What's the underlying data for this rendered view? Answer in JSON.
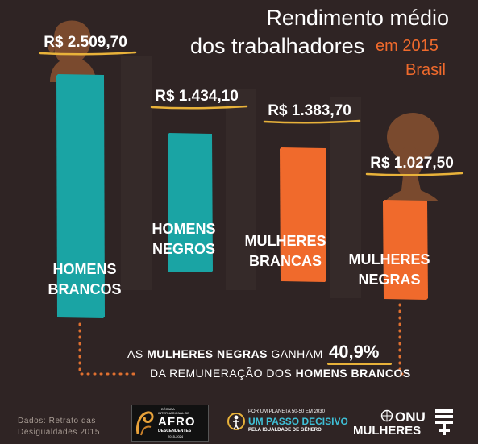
{
  "colors": {
    "background": "#2f2424",
    "teal": "#1aa4a4",
    "orange": "#f06a2c",
    "underline": "#e8b23a",
    "dots": "#e07030",
    "silhouette": "#7a4a2e",
    "text": "#ffffff"
  },
  "header": {
    "title_line1": "Rendimento médio",
    "title_line2": "dos trabalhadores",
    "year": "em 2015",
    "region": "Brasil"
  },
  "chart_data": {
    "type": "bar",
    "title": "Rendimento médio dos trabalhadores em 2015",
    "subtitle": "Brasil",
    "unit": "R$",
    "ylim": [
      0,
      2509.7
    ],
    "categories": [
      "HOMENS BRANCOS",
      "HOMENS NEGROS",
      "MULHERES BRANCAS",
      "MULHERES NEGRAS"
    ],
    "category_lines": [
      [
        "HOMENS",
        "BRANCOS"
      ],
      [
        "HOMENS",
        "NEGROS"
      ],
      [
        "MULHERES",
        "BRANCAS"
      ],
      [
        "MULHERES",
        "NEGRAS"
      ]
    ],
    "values": [
      2509.7,
      1434.1,
      1383.7,
      1027.5
    ],
    "value_labels": [
      "R$ 2.509,70",
      "R$ 1.434,10",
      "R$ 1.383,70",
      "R$ 1.027,50"
    ],
    "bar_colors": [
      "#1aa4a4",
      "#1aa4a4",
      "#f06a2c",
      "#f06a2c"
    ],
    "legend": "none",
    "grid": false
  },
  "comparison": {
    "prefix": "AS ",
    "emph1": "MULHERES NEGRAS",
    "middle": " GANHAM",
    "percentage": "40,9%",
    "line2_prefix": "DA REMUNERAÇÃO DOS ",
    "emph2": "HOMENS BRANCOS"
  },
  "footer": {
    "source_line1": "Dados: Retrato das",
    "source_line2": "Desigualdades 2015",
    "afro_logo": {
      "line1": "DÉCADA",
      "line2": "INTERNACIONAL DE",
      "big": "AFRO",
      "line3": "DESCENDENTES",
      "years": "2015-2024"
    },
    "planeta_logo": {
      "line1": "POR UM PLANETA 50-50 EM 2030",
      "line2": "UM PASSO DECISIVO",
      "line3": "PELA IGUALDADE DE GÊNERO"
    },
    "onu_logo": {
      "line1": "ONU",
      "line2": "MULHERES"
    }
  }
}
